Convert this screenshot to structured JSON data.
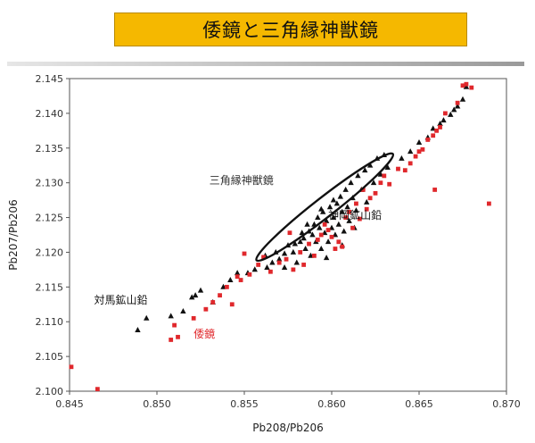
{
  "title": "倭鏡と三角縁神獣鏡",
  "chart_data": {
    "type": "scatter",
    "xlabel": "Pb208/Pb206",
    "ylabel": "Pb207/Pb206",
    "xlim": [
      0.845,
      0.87
    ],
    "ylim": [
      2.1,
      2.145
    ],
    "xticks": [
      "0.845",
      "0.850",
      "0.855",
      "0.860",
      "0.865",
      "0.870"
    ],
    "yticks": [
      "2.100",
      "2.105",
      "2.110",
      "2.115",
      "2.120",
      "2.125",
      "2.130",
      "2.135",
      "2.140",
      "2.145"
    ],
    "grid": false,
    "legend": "none",
    "colors": {
      "triangle_series": "#111111",
      "square_series": "#e0282c"
    },
    "annotations": [
      {
        "text": "三角縁神獣鏡",
        "color": "#333333"
      },
      {
        "text": "神岡鉱山鉛",
        "color": "#111111"
      },
      {
        "text": "対馬鉱山鉛",
        "color": "#111111"
      },
      {
        "text": "倭鏡",
        "color": "#e0282c"
      }
    ],
    "ellipse": {
      "center": [
        0.8596,
        2.1265
      ],
      "x_range": [
        0.8557,
        0.8635
      ],
      "y_range": [
        2.1192,
        2.1345
      ]
    },
    "series": [
      {
        "marker": "triangle",
        "color": "#111111",
        "points": [
          [
            0.8489,
            2.1088
          ],
          [
            0.8494,
            2.1105
          ],
          [
            0.8508,
            2.1108
          ],
          [
            0.8515,
            2.1115
          ],
          [
            0.852,
            2.1135
          ],
          [
            0.8525,
            2.1145
          ],
          [
            0.8522,
            2.1138
          ],
          [
            0.8532,
            2.1128
          ],
          [
            0.8538,
            2.115
          ],
          [
            0.8542,
            2.116
          ],
          [
            0.8546,
            2.117
          ],
          [
            0.8552,
            2.117
          ],
          [
            0.8556,
            2.1175
          ],
          [
            0.8563,
            2.1178
          ],
          [
            0.8566,
            2.1185
          ],
          [
            0.857,
            2.119
          ],
          [
            0.8573,
            2.1198
          ],
          [
            0.8575,
            2.121
          ],
          [
            0.8578,
            2.12
          ],
          [
            0.858,
            2.1185
          ],
          [
            0.8582,
            2.1215
          ],
          [
            0.8584,
            2.122
          ],
          [
            0.8585,
            2.1205
          ],
          [
            0.8587,
            2.123
          ],
          [
            0.8588,
            2.1195
          ],
          [
            0.8589,
            2.1225
          ],
          [
            0.859,
            2.124
          ],
          [
            0.8591,
            2.1215
          ],
          [
            0.8592,
            2.125
          ],
          [
            0.8593,
            2.1235
          ],
          [
            0.8594,
            2.1205
          ],
          [
            0.8595,
            2.1258
          ],
          [
            0.8596,
            2.1228
          ],
          [
            0.8597,
            2.1245
          ],
          [
            0.8598,
            2.1215
          ],
          [
            0.8599,
            2.1265
          ],
          [
            0.86,
            2.1235
          ],
          [
            0.8601,
            2.125
          ],
          [
            0.8602,
            2.1225
          ],
          [
            0.8603,
            2.127
          ],
          [
            0.8604,
            2.124
          ],
          [
            0.8605,
            2.128
          ],
          [
            0.8606,
            2.1258
          ],
          [
            0.8607,
            2.123
          ],
          [
            0.8608,
            2.129
          ],
          [
            0.8609,
            2.1265
          ],
          [
            0.861,
            2.1245
          ],
          [
            0.8611,
            2.13
          ],
          [
            0.8612,
            2.1278
          ],
          [
            0.8614,
            2.126
          ],
          [
            0.8615,
            2.131
          ],
          [
            0.8617,
            2.129
          ],
          [
            0.8619,
            2.1318
          ],
          [
            0.862,
            2.1272
          ],
          [
            0.8622,
            2.1325
          ],
          [
            0.8624,
            2.13
          ],
          [
            0.8626,
            2.1335
          ],
          [
            0.8628,
            2.1312
          ],
          [
            0.863,
            2.134
          ],
          [
            0.8632,
            2.1322
          ],
          [
            0.8586,
            2.124
          ],
          [
            0.8594,
            2.1262
          ],
          [
            0.8601,
            2.1275
          ],
          [
            0.8583,
            2.1228
          ],
          [
            0.8579,
            2.1212
          ],
          [
            0.8597,
            2.1192
          ],
          [
            0.8606,
            2.121
          ],
          [
            0.8613,
            2.1235
          ],
          [
            0.8562,
            2.1195
          ],
          [
            0.8568,
            2.12
          ],
          [
            0.8573,
            2.1178
          ],
          [
            0.864,
            2.1335
          ],
          [
            0.8645,
            2.1345
          ],
          [
            0.865,
            2.1358
          ],
          [
            0.8655,
            2.1365
          ],
          [
            0.8658,
            2.1378
          ],
          [
            0.8662,
            2.1385
          ],
          [
            0.8664,
            2.139
          ],
          [
            0.8668,
            2.1398
          ],
          [
            0.867,
            2.1405
          ],
          [
            0.8672,
            2.141
          ],
          [
            0.8675,
            2.142
          ],
          [
            0.8677,
            2.1438
          ]
        ]
      },
      {
        "marker": "square",
        "color": "#e0282c",
        "points": [
          [
            0.8451,
            2.1035
          ],
          [
            0.8466,
            2.1003
          ],
          [
            0.8508,
            2.1074
          ],
          [
            0.8512,
            2.1078
          ],
          [
            0.851,
            2.1095
          ],
          [
            0.8521,
            2.1105
          ],
          [
            0.8528,
            2.1118
          ],
          [
            0.8532,
            2.1128
          ],
          [
            0.8536,
            2.1138
          ],
          [
            0.854,
            2.115
          ],
          [
            0.8543,
            2.1125
          ],
          [
            0.8546,
            2.1165
          ],
          [
            0.8548,
            2.116
          ],
          [
            0.855,
            2.1198
          ],
          [
            0.8553,
            2.1168
          ],
          [
            0.8558,
            2.1182
          ],
          [
            0.8561,
            2.1193
          ],
          [
            0.8565,
            2.1172
          ],
          [
            0.857,
            2.1185
          ],
          [
            0.8574,
            2.119
          ],
          [
            0.8576,
            2.1228
          ],
          [
            0.8578,
            2.1175
          ],
          [
            0.8582,
            2.12
          ],
          [
            0.8584,
            2.1182
          ],
          [
            0.8587,
            2.1212
          ],
          [
            0.859,
            2.1195
          ],
          [
            0.8592,
            2.1218
          ],
          [
            0.8594,
            2.1225
          ],
          [
            0.8596,
            2.124
          ],
          [
            0.8598,
            2.1232
          ],
          [
            0.86,
            2.1222
          ],
          [
            0.8602,
            2.1205
          ],
          [
            0.8604,
            2.1215
          ],
          [
            0.8606,
            2.1208
          ],
          [
            0.8608,
            2.125
          ],
          [
            0.861,
            2.1258
          ],
          [
            0.8612,
            2.1235
          ],
          [
            0.8614,
            2.127
          ],
          [
            0.8616,
            2.1248
          ],
          [
            0.8618,
            2.129
          ],
          [
            0.862,
            2.1262
          ],
          [
            0.8622,
            2.1278
          ],
          [
            0.8625,
            2.1285
          ],
          [
            0.8628,
            2.13
          ],
          [
            0.863,
            2.131
          ],
          [
            0.8633,
            2.1298
          ],
          [
            0.8638,
            2.132
          ],
          [
            0.8642,
            2.1318
          ],
          [
            0.8645,
            2.1328
          ],
          [
            0.8648,
            2.1338
          ],
          [
            0.865,
            2.1345
          ],
          [
            0.8652,
            2.1348
          ],
          [
            0.8655,
            2.1362
          ],
          [
            0.8658,
            2.1368
          ],
          [
            0.866,
            2.1375
          ],
          [
            0.8659,
            2.129
          ],
          [
            0.8662,
            2.138
          ],
          [
            0.8665,
            2.14
          ],
          [
            0.8672,
            2.1415
          ],
          [
            0.8675,
            2.144
          ],
          [
            0.8677,
            2.1442
          ],
          [
            0.868,
            2.1437
          ],
          [
            0.869,
            2.127
          ]
        ]
      }
    ]
  }
}
